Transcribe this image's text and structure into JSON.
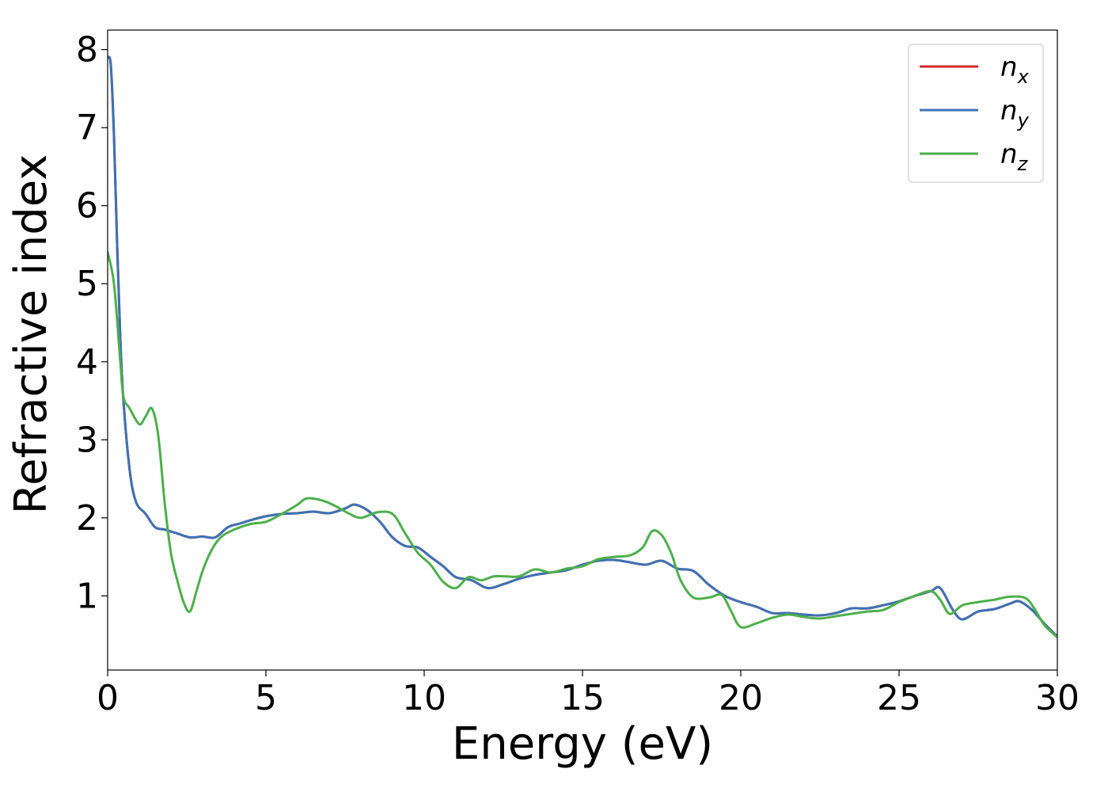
{
  "chart_data": {
    "type": "line",
    "title": "",
    "xlabel": "Energy (eV)",
    "ylabel": "Refractive index",
    "xlim": [
      0,
      30
    ],
    "ylim": [
      0.05,
      8.25
    ],
    "xticks": [
      "0",
      "5",
      "10",
      "15",
      "20",
      "25",
      "30"
    ],
    "yticks": [
      "1",
      "2",
      "3",
      "4",
      "5",
      "6",
      "7",
      "8"
    ],
    "grid": false,
    "legend_position": "top-right",
    "series": [
      {
        "name": "n_x",
        "label_base": "n",
        "label_sub": "x",
        "color": "#d62728",
        "x": [
          0,
          0.1,
          0.2,
          0.3,
          0.4,
          0.5,
          0.7,
          0.9,
          1.2,
          1.5,
          1.8,
          2.2,
          2.6,
          3.0,
          3.4,
          3.8,
          4.2,
          4.6,
          5.0,
          5.5,
          6.0,
          6.5,
          7.0,
          7.5,
          7.8,
          8.2,
          8.6,
          9.0,
          9.4,
          9.8,
          10.2,
          10.6,
          11.0,
          11.5,
          12.0,
          12.5,
          13.0,
          13.5,
          14.0,
          14.5,
          15.0,
          15.5,
          16.0,
          16.5,
          17.0,
          17.5,
          18.0,
          18.5,
          19.0,
          19.5,
          20.0,
          20.5,
          21.0,
          21.5,
          22.0,
          22.5,
          23.0,
          23.5,
          24.0,
          24.5,
          25.0,
          25.5,
          26.0,
          26.3,
          26.7,
          27.0,
          27.5,
          28.0,
          28.5,
          28.8,
          29.2,
          29.6,
          30.0
        ],
        "y": [
          7.9,
          7.8,
          6.9,
          5.5,
          4.3,
          3.5,
          2.6,
          2.2,
          2.05,
          1.88,
          1.85,
          1.8,
          1.75,
          1.76,
          1.75,
          1.88,
          1.93,
          1.98,
          2.02,
          2.05,
          2.06,
          2.08,
          2.06,
          2.12,
          2.17,
          2.1,
          1.95,
          1.75,
          1.64,
          1.62,
          1.5,
          1.38,
          1.24,
          1.2,
          1.1,
          1.15,
          1.22,
          1.27,
          1.3,
          1.33,
          1.4,
          1.45,
          1.46,
          1.43,
          1.4,
          1.45,
          1.35,
          1.32,
          1.14,
          1.0,
          0.92,
          0.86,
          0.78,
          0.78,
          0.76,
          0.75,
          0.78,
          0.84,
          0.84,
          0.88,
          0.93,
          1.0,
          1.06,
          1.1,
          0.82,
          0.7,
          0.8,
          0.83,
          0.9,
          0.93,
          0.82,
          0.64,
          0.48
        ]
      },
      {
        "name": "n_y",
        "label_base": "n",
        "label_sub": "y",
        "color": "#3d72b4",
        "x": [
          0,
          0.1,
          0.2,
          0.3,
          0.4,
          0.5,
          0.7,
          0.9,
          1.2,
          1.5,
          1.8,
          2.2,
          2.6,
          3.0,
          3.4,
          3.8,
          4.2,
          4.6,
          5.0,
          5.5,
          6.0,
          6.5,
          7.0,
          7.5,
          7.8,
          8.2,
          8.6,
          9.0,
          9.4,
          9.8,
          10.2,
          10.6,
          11.0,
          11.5,
          12.0,
          12.5,
          13.0,
          13.5,
          14.0,
          14.5,
          15.0,
          15.5,
          16.0,
          16.5,
          17.0,
          17.5,
          18.0,
          18.5,
          19.0,
          19.5,
          20.0,
          20.5,
          21.0,
          21.5,
          22.0,
          22.5,
          23.0,
          23.5,
          24.0,
          24.5,
          25.0,
          25.5,
          26.0,
          26.3,
          26.7,
          27.0,
          27.5,
          28.0,
          28.5,
          28.8,
          29.2,
          29.6,
          30.0
        ],
        "y": [
          7.9,
          7.8,
          6.9,
          5.5,
          4.3,
          3.5,
          2.6,
          2.2,
          2.05,
          1.88,
          1.85,
          1.8,
          1.75,
          1.76,
          1.75,
          1.88,
          1.93,
          1.98,
          2.02,
          2.05,
          2.06,
          2.08,
          2.06,
          2.12,
          2.17,
          2.1,
          1.95,
          1.75,
          1.64,
          1.62,
          1.5,
          1.38,
          1.24,
          1.2,
          1.1,
          1.15,
          1.22,
          1.27,
          1.3,
          1.33,
          1.4,
          1.45,
          1.46,
          1.43,
          1.4,
          1.45,
          1.35,
          1.32,
          1.14,
          1.0,
          0.92,
          0.86,
          0.78,
          0.78,
          0.76,
          0.75,
          0.78,
          0.84,
          0.84,
          0.88,
          0.93,
          1.0,
          1.06,
          1.1,
          0.82,
          0.7,
          0.8,
          0.83,
          0.9,
          0.93,
          0.82,
          0.64,
          0.48
        ]
      },
      {
        "name": "n_z",
        "label_base": "n",
        "label_sub": "z",
        "color": "#4daf4a",
        "x": [
          0,
          0.2,
          0.4,
          0.5,
          0.7,
          1.0,
          1.2,
          1.4,
          1.6,
          1.8,
          2.0,
          2.2,
          2.4,
          2.6,
          2.8,
          3.0,
          3.3,
          3.6,
          4.0,
          4.5,
          5.0,
          5.5,
          6.0,
          6.3,
          6.8,
          7.2,
          7.6,
          8.0,
          8.5,
          9.0,
          9.4,
          9.8,
          10.2,
          10.6,
          11.0,
          11.4,
          11.8,
          12.2,
          12.6,
          13.0,
          13.5,
          14.0,
          14.5,
          15.0,
          15.5,
          16.0,
          16.5,
          16.9,
          17.2,
          17.5,
          17.8,
          18.1,
          18.5,
          19.0,
          19.4,
          19.7,
          20.0,
          20.5,
          21.0,
          21.5,
          22.0,
          22.5,
          23.0,
          23.5,
          24.0,
          24.5,
          25.0,
          25.5,
          26.0,
          26.3,
          26.6,
          27.0,
          27.5,
          28.0,
          28.5,
          29.0,
          29.3,
          29.6,
          30.0
        ],
        "y": [
          5.4,
          5.0,
          4.0,
          3.55,
          3.4,
          3.2,
          3.3,
          3.4,
          3.05,
          2.2,
          1.55,
          1.2,
          0.92,
          0.8,
          1.05,
          1.32,
          1.6,
          1.76,
          1.85,
          1.92,
          1.95,
          2.05,
          2.17,
          2.25,
          2.22,
          2.15,
          2.06,
          2.0,
          2.07,
          2.05,
          1.8,
          1.55,
          1.4,
          1.18,
          1.1,
          1.24,
          1.2,
          1.25,
          1.25,
          1.25,
          1.34,
          1.3,
          1.35,
          1.38,
          1.47,
          1.5,
          1.52,
          1.62,
          1.83,
          1.78,
          1.55,
          1.2,
          0.98,
          0.98,
          1.01,
          0.8,
          0.6,
          0.65,
          0.72,
          0.76,
          0.73,
          0.71,
          0.74,
          0.77,
          0.8,
          0.82,
          0.92,
          1.0,
          1.06,
          0.95,
          0.77,
          0.88,
          0.92,
          0.95,
          0.99,
          0.97,
          0.82,
          0.62,
          0.47
        ]
      }
    ]
  }
}
